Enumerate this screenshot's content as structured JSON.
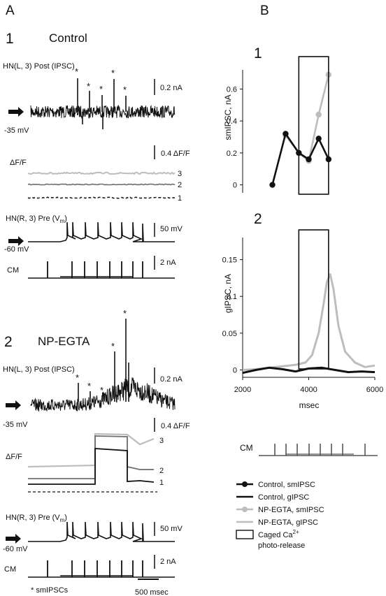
{
  "panelA": {
    "letter": "A",
    "p1": {
      "num": "1",
      "title": "Control",
      "post_label": "HN(L, 3) Post (IPSC)",
      "scale_current": "0.2 nA",
      "hold_post": "-35 mV",
      "scale_df": "0.4 ΔF/F",
      "df_label": "ΔF/F",
      "trace_nums": [
        "3",
        "2",
        "1"
      ],
      "pre_label_main": "HN(R, 3) Pre (V",
      "pre_label_sub": "m",
      "pre_label_end": ")",
      "scale_voltage": "50 mV",
      "hold_pre": "-60 mV",
      "scale_cm": "2 nA",
      "cm_label": "CM"
    },
    "p2": {
      "num": "2",
      "title": "NP-EGTA",
      "post_label": "HN(L, 3) Post (IPSC)",
      "scale_current": "0.2 nA",
      "hold_post": "-35 mV",
      "scale_df": "0.4 ΔF/F",
      "df_label": "ΔF/F",
      "trace_nums": [
        "3",
        "2",
        "1"
      ],
      "pre_label_main": "HN(R, 3) Pre (V",
      "pre_label_sub": "m",
      "pre_label_end": ")",
      "scale_voltage": "50 mV",
      "hold_pre": "-60 mV",
      "scale_cm": "2 nA",
      "cm_label": "CM"
    },
    "asterisk_note": "* smIPSCs",
    "time_scale": "500 msec"
  },
  "panelB": {
    "letter": "B",
    "cm_label": "CM",
    "legend": [
      {
        "label": "Control, smIPSC",
        "color": "#111111",
        "style": "line-dot"
      },
      {
        "label": "Control, gIPSC",
        "color": "#111111",
        "style": "line"
      },
      {
        "label": "NP-EGTA, smIPSC",
        "color": "#bdbdbd",
        "style": "line-dot"
      },
      {
        "label": "NP-EGTA, gIPSC",
        "color": "#bdbdbd",
        "style": "line"
      },
      {
        "label": "Caged Ca",
        "label_sup": "2+",
        "label2": "photo-release",
        "color": "#111111",
        "style": "box"
      }
    ]
  },
  "chart_data": [
    {
      "type": "line",
      "panel": "1",
      "ylabel": "smIPSC, nA",
      "yticks": [
        "0",
        "0.2",
        "0.4",
        "0.6"
      ],
      "ylim": [
        -0.05,
        0.72
      ],
      "xlim": [
        2000,
        6000
      ],
      "series": [
        {
          "name": "Control, smIPSC",
          "color": "#111111",
          "x": [
            2900,
            3300,
            3700,
            4000,
            4300,
            4600
          ],
          "y": [
            0.0,
            0.32,
            0.2,
            0.16,
            0.29,
            0.16
          ]
        },
        {
          "name": "NP-EGTA, smIPSC",
          "color": "#bdbdbd",
          "x": [
            3300,
            3700,
            4000,
            4300,
            4600
          ],
          "y": [
            0.31,
            0.2,
            0.15,
            0.44,
            0.69
          ]
        }
      ],
      "highlight_box": {
        "x_start": 3700,
        "x_end": 4600,
        "label": "Caged Ca2+ photo-release"
      }
    },
    {
      "type": "line",
      "panel": "2",
      "xlabel": "msec",
      "ylabel": "gIPSC, nA",
      "xticks": [
        "2000",
        "4000",
        "6000"
      ],
      "yticks": [
        "0",
        "0.05",
        "0.1",
        "0.15"
      ],
      "xlim": [
        2000,
        6000
      ],
      "ylim": [
        -0.01,
        0.18
      ],
      "series": [
        {
          "name": "Control, gIPSC",
          "color": "#111111",
          "x": [
            2000,
            2400,
            2800,
            3200,
            3600,
            4000,
            4400,
            4800,
            5200,
            5600,
            6000
          ],
          "y": [
            -0.004,
            0.0,
            0.003,
            0.001,
            -0.002,
            0.002,
            0.003,
            0.0,
            -0.003,
            -0.002,
            -0.003
          ]
        },
        {
          "name": "NP-EGTA, gIPSC",
          "color": "#bdbdbd",
          "x": [
            2000,
            2400,
            2800,
            3200,
            3600,
            3900,
            4100,
            4300,
            4450,
            4550,
            4650,
            4750,
            4900,
            5100,
            5400,
            5700,
            6000
          ],
          "y": [
            0.0,
            0.001,
            0.003,
            0.005,
            0.007,
            0.01,
            0.02,
            0.05,
            0.09,
            0.12,
            0.13,
            0.11,
            0.06,
            0.025,
            0.01,
            0.004,
            0.006
          ]
        }
      ],
      "highlight_box": {
        "x_start": 3700,
        "x_end": 4600,
        "label": "Caged Ca2+ photo-release"
      }
    }
  ]
}
